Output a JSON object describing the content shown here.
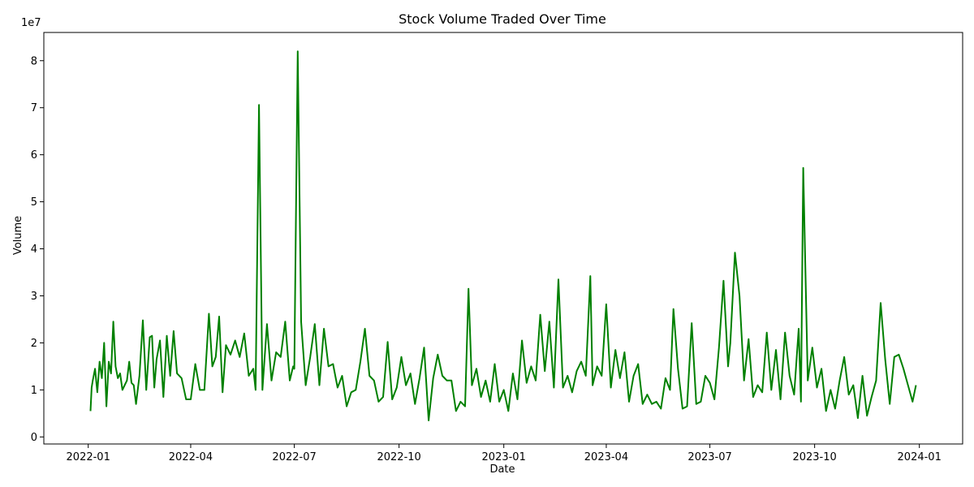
{
  "chart_data": {
    "type": "line",
    "title": "Stock Volume Traded Over Time",
    "xlabel": "Date",
    "ylabel": "Volume",
    "y_scale_label": "1e7",
    "x_tick_labels": [
      "2022-01",
      "2022-04",
      "2022-07",
      "2022-10",
      "2023-01",
      "2023-04",
      "2023-07",
      "2023-10",
      "2024-01"
    ],
    "y_tick_labels": [
      "0",
      "1",
      "2",
      "3",
      "4",
      "5",
      "6",
      "7",
      "8"
    ],
    "xlim": [
      "2021-11-23",
      "2024-02-08"
    ],
    "ylim": [
      -0.15,
      8.6
    ],
    "grid": false,
    "line_color": "#008000",
    "series": [
      {
        "x": [
          "2022-01-03",
          "2022-01-04",
          "2022-01-05",
          "2022-01-07",
          "2022-01-09",
          "2022-01-11",
          "2022-01-13",
          "2022-01-15",
          "2022-01-17",
          "2022-01-19",
          "2022-01-21",
          "2022-01-23",
          "2022-01-25",
          "2022-01-27",
          "2022-01-29",
          "2022-01-31",
          "2022-02-02",
          "2022-02-04",
          "2022-02-06",
          "2022-02-08",
          "2022-02-10",
          "2022-02-12",
          "2022-02-15",
          "2022-02-18",
          "2022-02-21",
          "2022-02-24",
          "2022-02-26",
          "2022-02-28",
          "2022-03-02",
          "2022-03-05",
          "2022-03-08",
          "2022-03-11",
          "2022-03-14",
          "2022-03-17",
          "2022-03-20",
          "2022-03-24",
          "2022-03-28",
          "2022-04-01",
          "2022-04-05",
          "2022-04-09",
          "2022-04-13",
          "2022-04-17",
          "2022-04-20",
          "2022-04-23",
          "2022-04-26",
          "2022-04-29",
          "2022-05-02",
          "2022-05-06",
          "2022-05-10",
          "2022-05-14",
          "2022-05-18",
          "2022-05-22",
          "2022-05-26",
          "2022-05-28",
          "2022-05-31",
          "2022-06-03",
          "2022-06-07",
          "2022-06-11",
          "2022-06-15",
          "2022-06-19",
          "2022-06-23",
          "2022-06-27",
          "2022-06-30",
          "2022-07-01",
          "2022-07-04",
          "2022-07-07",
          "2022-07-11",
          "2022-07-15",
          "2022-07-19",
          "2022-07-23",
          "2022-07-27",
          "2022-07-31",
          "2022-08-04",
          "2022-08-08",
          "2022-08-12",
          "2022-08-16",
          "2022-08-20",
          "2022-08-24",
          "2022-08-28",
          "2022-09-01",
          "2022-09-05",
          "2022-09-09",
          "2022-09-13",
          "2022-09-17",
          "2022-09-21",
          "2022-09-25",
          "2022-09-29",
          "2022-10-03",
          "2022-10-07",
          "2022-10-11",
          "2022-10-15",
          "2022-10-19",
          "2022-10-23",
          "2022-10-27",
          "2022-10-31",
          "2022-11-04",
          "2022-11-08",
          "2022-11-12",
          "2022-11-16",
          "2022-11-20",
          "2022-11-24",
          "2022-11-28",
          "2022-12-01",
          "2022-12-04",
          "2022-12-08",
          "2022-12-12",
          "2022-12-16",
          "2022-12-20",
          "2022-12-24",
          "2022-12-28",
          "2023-01-01",
          "2023-01-05",
          "2023-01-09",
          "2023-01-13",
          "2023-01-17",
          "2023-01-21",
          "2023-01-25",
          "2023-01-29",
          "2023-02-02",
          "2023-02-06",
          "2023-02-10",
          "2023-02-14",
          "2023-02-18",
          "2023-02-22",
          "2023-02-26",
          "2023-03-02",
          "2023-03-06",
          "2023-03-10",
          "2023-03-14",
          "2023-03-18",
          "2023-03-20",
          "2023-03-24",
          "2023-03-28",
          "2023-04-01",
          "2023-04-05",
          "2023-04-09",
          "2023-04-13",
          "2023-04-17",
          "2023-04-21",
          "2023-04-25",
          "2023-04-29",
          "2023-05-03",
          "2023-05-07",
          "2023-05-11",
          "2023-05-15",
          "2023-05-19",
          "2023-05-23",
          "2023-05-27",
          "2023-05-30",
          "2023-06-03",
          "2023-06-07",
          "2023-06-11",
          "2023-06-15",
          "2023-06-19",
          "2023-06-23",
          "2023-06-27",
          "2023-07-01",
          "2023-07-05",
          "2023-07-09",
          "2023-07-13",
          "2023-07-17",
          "2023-07-19",
          "2023-07-23",
          "2023-07-27",
          "2023-07-31",
          "2023-08-04",
          "2023-08-08",
          "2023-08-12",
          "2023-08-16",
          "2023-08-20",
          "2023-08-24",
          "2023-08-28",
          "2023-09-01",
          "2023-09-05",
          "2023-09-09",
          "2023-09-13",
          "2023-09-17",
          "2023-09-19",
          "2023-09-21",
          "2023-09-25",
          "2023-09-29",
          "2023-10-03",
          "2023-10-07",
          "2023-10-11",
          "2023-10-15",
          "2023-10-19",
          "2023-10-23",
          "2023-10-27",
          "2023-10-31",
          "2023-11-04",
          "2023-11-08",
          "2023-11-12",
          "2023-11-16",
          "2023-11-20",
          "2023-11-24",
          "2023-11-28",
          "2023-12-02",
          "2023-12-06",
          "2023-12-10",
          "2023-12-14",
          "2023-12-18",
          "2023-12-22",
          "2023-12-26",
          "2023-12-29"
        ],
        "values": [
          0.55,
          1.05,
          1.2,
          1.45,
          0.95,
          1.6,
          1.25,
          2.0,
          0.65,
          1.6,
          1.35,
          2.45,
          1.5,
          1.25,
          1.35,
          1.0,
          1.1,
          1.2,
          1.6,
          1.15,
          1.1,
          0.7,
          1.3,
          2.48,
          1.0,
          2.12,
          2.15,
          1.05,
          1.65,
          2.05,
          0.85,
          2.15,
          1.3,
          2.25,
          1.35,
          1.25,
          0.8,
          0.8,
          1.55,
          1.0,
          1.0,
          2.62,
          1.5,
          1.7,
          2.56,
          0.95,
          1.95,
          1.75,
          2.05,
          1.7,
          2.2,
          1.3,
          1.45,
          1.0,
          7.06,
          1.0,
          2.4,
          1.2,
          1.8,
          1.7,
          2.45,
          1.2,
          1.5,
          1.45,
          8.2,
          2.45,
          1.1,
          1.7,
          2.4,
          1.1,
          2.3,
          1.5,
          1.55,
          1.05,
          1.3,
          0.65,
          0.95,
          1.0,
          1.6,
          2.3,
          1.3,
          1.2,
          0.75,
          0.85,
          2.02,
          0.8,
          1.05,
          1.7,
          1.1,
          1.35,
          0.7,
          1.25,
          1.9,
          0.35,
          1.25,
          1.75,
          1.3,
          1.2,
          1.2,
          0.55,
          0.75,
          0.65,
          3.15,
          1.1,
          1.45,
          0.85,
          1.2,
          0.75,
          1.55,
          0.75,
          1.0,
          0.55,
          1.35,
          0.8,
          2.05,
          1.15,
          1.5,
          1.2,
          2.6,
          1.4,
          2.45,
          1.05,
          3.35,
          1.05,
          1.3,
          0.95,
          1.4,
          1.6,
          1.3,
          3.42,
          1.1,
          1.5,
          1.3,
          2.82,
          1.05,
          1.85,
          1.25,
          1.8,
          0.75,
          1.3,
          1.55,
          0.7,
          0.9,
          0.7,
          0.75,
          0.6,
          1.25,
          1.0,
          2.72,
          1.45,
          0.6,
          0.65,
          2.42,
          0.7,
          0.75,
          1.3,
          1.15,
          0.8,
          1.9,
          3.32,
          1.5,
          2.0,
          3.92,
          3.0,
          1.2,
          2.08,
          0.85,
          1.1,
          0.95,
          2.22,
          1.0,
          1.85,
          0.8,
          2.22,
          1.3,
          0.9,
          2.3,
          0.75,
          5.72,
          1.2,
          1.9,
          1.05,
          1.45,
          0.55,
          1.0,
          0.6,
          1.2,
          1.7,
          0.9,
          1.1,
          0.4,
          1.3,
          0.45,
          0.85,
          1.2,
          2.85,
          1.65,
          0.7,
          1.7,
          1.75,
          1.45,
          1.1,
          0.75,
          1.1
        ]
      }
    ]
  }
}
